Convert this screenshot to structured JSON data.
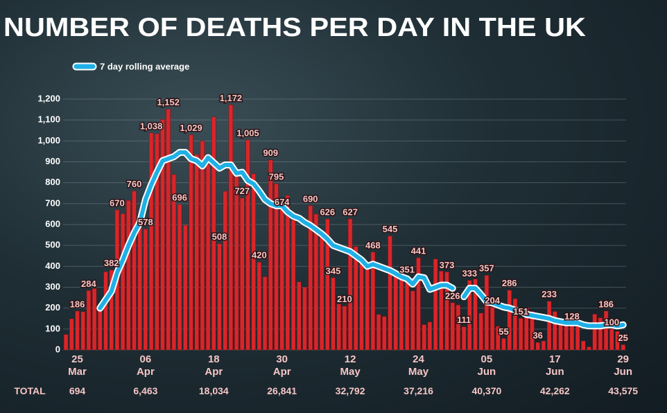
{
  "chart_data": {
    "type": "bar",
    "title": "NUMBER OF DEATHS PER DAY IN THE UK",
    "categories": [
      null,
      null,
      "25 Mar",
      null,
      null,
      null,
      null,
      null,
      null,
      null,
      null,
      null,
      null,
      null,
      "06 Apr",
      null,
      null,
      null,
      null,
      null,
      null,
      null,
      null,
      null,
      null,
      null,
      "18 Apr",
      null,
      null,
      null,
      null,
      null,
      null,
      null,
      null,
      null,
      null,
      null,
      "30 Apr",
      null,
      null,
      null,
      null,
      null,
      null,
      null,
      null,
      null,
      null,
      null,
      "12 May",
      null,
      null,
      null,
      null,
      null,
      null,
      null,
      null,
      null,
      null,
      null,
      "24 May",
      null,
      null,
      null,
      null,
      null,
      null,
      null,
      null,
      null,
      null,
      null,
      "05 Jun",
      null,
      null,
      null,
      null,
      null,
      null,
      null,
      null,
      null,
      null,
      null,
      "17 Jun",
      null,
      null,
      null,
      null,
      null,
      null,
      null,
      null,
      null,
      null,
      null,
      "29 Jun"
    ],
    "series": [
      {
        "name": "Deaths per day",
        "color": "#d8262a",
        "values": [
          74,
          149,
          186,
          183,
          284,
          294,
          214,
          374,
          382,
          670,
          652,
          715,
          760,
          644,
          578,
          1038,
          1034,
          1103,
          1152,
          839,
          696,
          597,
          1029,
          935,
          1000,
          888,
          1115,
          508,
          759,
          1172,
          830,
          727,
          1005,
          843,
          420,
          350,
          909,
          795,
          674,
          739,
          621,
          326,
          300,
          690,
          650,
          540,
          626,
          345,
          220,
          210,
          627,
          494,
          428,
          385,
          468,
          170,
          160,
          545,
          363,
          338,
          351,
          282,
          441,
          121,
          134,
          435,
          377,
          373,
          226,
          215,
          111,
          333,
          339,
          176,
          357,
          204,
          113,
          55,
          286,
          245,
          151,
          202,
          184,
          36,
          43,
          233,
          184,
          149,
          135,
          128,
          120,
          43,
          15,
          171,
          154,
          186,
          100,
          89,
          25
        ],
        "value_labels": [
          null,
          null,
          "186",
          null,
          "284",
          null,
          null,
          null,
          "382",
          "670",
          null,
          null,
          "760",
          null,
          "578",
          "1,038",
          null,
          null,
          "1,152",
          null,
          "696",
          null,
          "1,029",
          null,
          null,
          null,
          null,
          "508",
          null,
          "1,172",
          null,
          "727",
          "1,005",
          null,
          "420",
          null,
          "909",
          "795",
          "674",
          null,
          null,
          null,
          null,
          "690",
          null,
          null,
          "626",
          "345",
          null,
          "210",
          "627",
          null,
          null,
          null,
          "468",
          null,
          null,
          "545",
          null,
          null,
          "351",
          null,
          "441",
          null,
          null,
          null,
          null,
          "373",
          "226",
          null,
          "111",
          "333",
          null,
          null,
          "357",
          "204",
          null,
          "55",
          "286",
          null,
          "151",
          null,
          null,
          "36",
          null,
          "233",
          null,
          null,
          null,
          "128",
          null,
          null,
          null,
          null,
          null,
          "186",
          "100",
          null,
          "25"
        ]
      },
      {
        "name": "7 day rolling average",
        "color": "#1fb0e6",
        "type": "line",
        "values": [
          null,
          null,
          null,
          null,
          null,
          null,
          200,
          240,
          280,
          370,
          430,
          500,
          560,
          610,
          720,
          790,
          850,
          905,
          915,
          925,
          945,
          945,
          915,
          905,
          880,
          920,
          895,
          870,
          885,
          885,
          845,
          850,
          810,
          795,
          760,
          720,
          700,
          690,
          690,
          660,
          640,
          630,
          610,
          595,
          575,
          555,
          530,
          500,
          490,
          480,
          470,
          450,
          430,
          400,
          410,
          400,
          390,
          380,
          365,
          350,
          340,
          315,
          350,
          345,
          290,
          300,
          310,
          310,
          295,
          null,
          255,
          295,
          295,
          265,
          230,
          225,
          215,
          205,
          200,
          190,
          185,
          170,
          165,
          160,
          155,
          150,
          140,
          135,
          130,
          130,
          130,
          120,
          115,
          115,
          115,
          120,
          120,
          115,
          120
        ]
      }
    ],
    "ylim": [
      0,
      1200
    ],
    "yticks": [
      0,
      100,
      200,
      300,
      400,
      500,
      600,
      700,
      800,
      900,
      {
        "value": 1000,
        "label": "1,000"
      },
      {
        "value": 1100,
        "label": "1,100"
      },
      {
        "value": 1200,
        "label": "1,200"
      }
    ],
    "grid": true,
    "totals_label": "TOTAL",
    "totals": [
      "694",
      "6,463",
      "18,034",
      "26,841",
      "32,792",
      "37,216",
      "40,370",
      "42,262",
      "43,575"
    ]
  }
}
